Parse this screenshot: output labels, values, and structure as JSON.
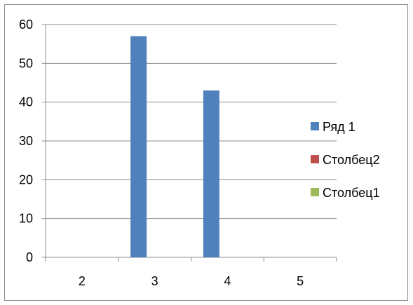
{
  "chart_data": {
    "type": "bar",
    "categories": [
      "2",
      "3",
      "4",
      "5"
    ],
    "series": [
      {
        "name": "Ряд 1",
        "values": [
          0,
          57,
          43,
          0
        ],
        "color": "#4f81bd"
      },
      {
        "name": "Столбец2",
        "values": [
          0,
          0,
          0,
          0
        ],
        "color": "#c0504d"
      },
      {
        "name": "Столбец1",
        "values": [
          0,
          0,
          0,
          0
        ],
        "color": "#9bbb59"
      }
    ],
    "ylim": [
      0,
      60
    ],
    "yticks": [
      "0",
      "10",
      "20",
      "30",
      "40",
      "50",
      "60"
    ],
    "grid": true,
    "legend": "right"
  }
}
